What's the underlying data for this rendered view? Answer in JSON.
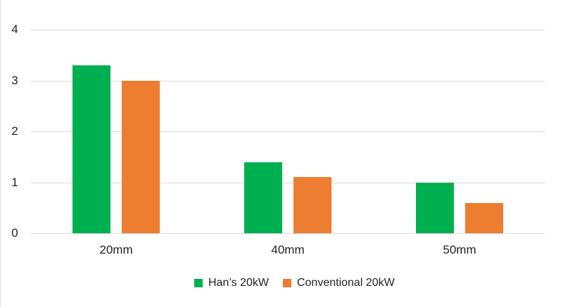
{
  "chart_data": {
    "type": "bar",
    "title": "",
    "xlabel": "",
    "ylabel": "",
    "categories": [
      "20mm",
      "40mm",
      "50mm"
    ],
    "series": [
      {
        "name": "Han’s 20kW",
        "color": "#00b050",
        "values": [
          3.3,
          1.4,
          1.0
        ]
      },
      {
        "name": "Conventional 20kW",
        "color": "#ed7d31",
        "values": [
          3.0,
          1.1,
          0.6
        ]
      }
    ],
    "yticks": [
      "0",
      "1",
      "2",
      "3",
      "4"
    ],
    "ylim": [
      0,
      4
    ],
    "grid": true,
    "legend_position": "bottom"
  }
}
